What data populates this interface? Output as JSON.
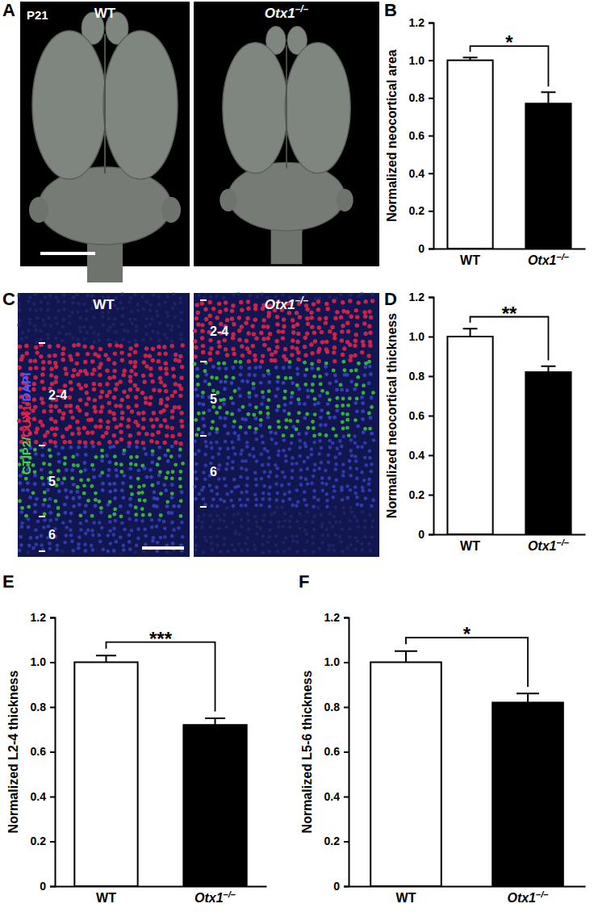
{
  "image_panels": [
    {
      "panel": "A",
      "labels": [
        "WT",
        "Otx1–/–"
      ],
      "stage": "P21"
    },
    {
      "panel": "C",
      "labels": [
        "WT",
        "Otx1–/–"
      ],
      "stain": [
        "CTIP2/",
        "CUX1/",
        "DAPI"
      ],
      "stain_colors": [
        "#3fd63f",
        "#e8264a",
        "#4a5cff"
      ],
      "layers": [
        [
          "2-4",
          "5",
          "6"
        ],
        [
          "2-4",
          "5",
          "6"
        ]
      ]
    }
  ],
  "chart_data": [
    {
      "panel": "B",
      "type": "bar",
      "categories": [
        "WT",
        "Otx1–/–"
      ],
      "values": [
        1.0,
        0.77
      ],
      "errors": [
        0.015,
        0.06
      ],
      "colors": [
        "#ffffff",
        "#000000"
      ],
      "ylabel": "Normalized neocortical area",
      "ylim": [
        0,
        1.2
      ],
      "yticks": [
        0,
        0.2,
        0.4,
        0.6,
        0.8,
        {
          "value": 1,
          "label": "1.0"
        },
        1.2
      ],
      "annotations": [
        "*"
      ]
    },
    {
      "panel": "D",
      "type": "bar",
      "categories": [
        "WT",
        "Otx1–/–"
      ],
      "values": [
        1.0,
        0.82
      ],
      "errors": [
        0.04,
        0.03
      ],
      "colors": [
        "#ffffff",
        "#000000"
      ],
      "ylabel": "Normalized neocortical thickness",
      "ylim": [
        0,
        1.2
      ],
      "yticks": [
        0,
        0.2,
        0.4,
        0.6,
        0.8,
        {
          "value": 1,
          "label": "1.0"
        },
        1.2
      ],
      "annotations": [
        "**"
      ]
    },
    {
      "panel": "E",
      "type": "bar",
      "categories": [
        "WT",
        "Otx1–/–"
      ],
      "values": [
        1.0,
        0.72
      ],
      "errors": [
        0.03,
        0.03
      ],
      "colors": [
        "#ffffff",
        "#000000"
      ],
      "ylabel": "Normalized L2-4 thickness",
      "ylim": [
        0,
        1.2
      ],
      "yticks": [
        0,
        0.2,
        0.4,
        0.6,
        0.8,
        {
          "value": 1,
          "label": "1.0"
        },
        1.2
      ],
      "annotations": [
        "***"
      ]
    },
    {
      "panel": "F",
      "type": "bar",
      "categories": [
        "WT",
        "Otx1–/–"
      ],
      "values": [
        1.0,
        0.82
      ],
      "errors": [
        0.05,
        0.04
      ],
      "colors": [
        "#ffffff",
        "#000000"
      ],
      "ylabel": "Normalized L5-6 thickness",
      "ylim": [
        0,
        1.2
      ],
      "yticks": [
        0,
        0.2,
        0.4,
        0.6,
        0.8,
        {
          "value": 1,
          "label": "1.0"
        },
        1.2
      ],
      "annotations": [
        "*"
      ]
    }
  ]
}
